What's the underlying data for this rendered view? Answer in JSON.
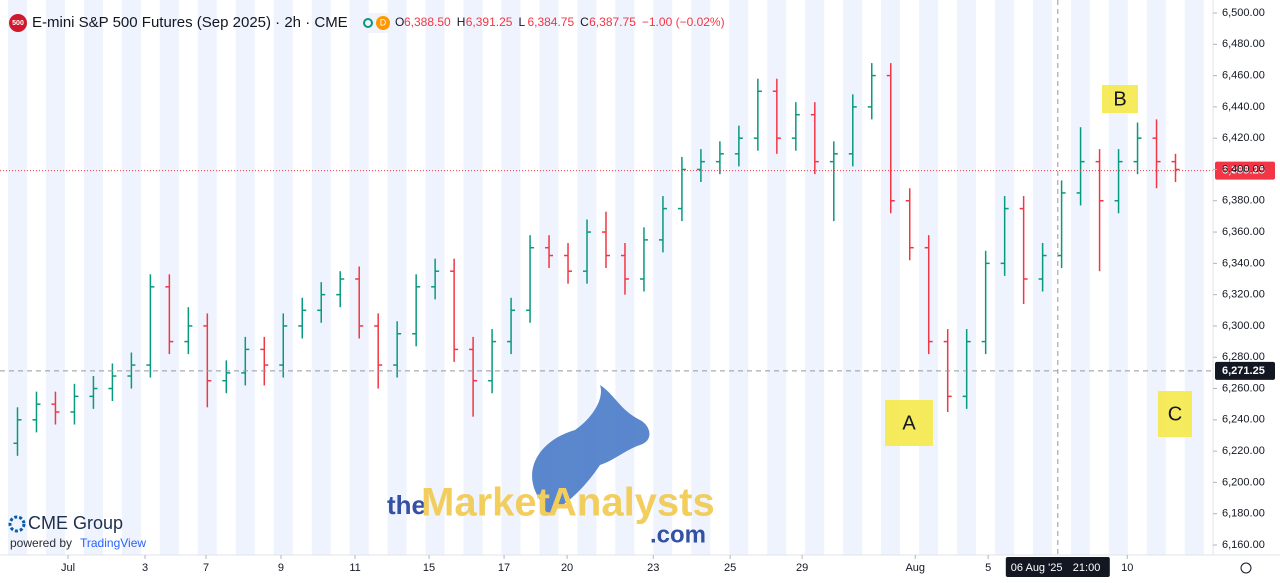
{
  "chart_data": {
    "type": "ohlc",
    "title": "E-mini S&P 500 Futures (Sep 2025) · 2h · CME",
    "symbol_badge": "500",
    "interval_badge": "D",
    "legend_items": [
      {
        "key": "O",
        "value": "6,388.50"
      },
      {
        "key": "H",
        "value": "6,391.25"
      },
      {
        "key": "L",
        "value": "6,384.75"
      },
      {
        "key": "C",
        "value": "6,387.75"
      }
    ],
    "change": "−1.00 (−0.02%)",
    "up_color": "#089981",
    "down_color": "#f23645",
    "x": [
      0.5,
      1.5,
      2.5,
      3.5,
      4.5,
      5.5,
      6.5,
      7.5,
      8.5,
      9.5,
      10.5,
      11.5,
      12.5,
      13.5,
      14.5,
      15.5,
      16.5,
      17.5,
      18.5,
      19.5,
      20.5,
      21.5,
      22.5,
      23.5,
      24.5,
      25.5,
      26.5,
      27.5,
      28.5,
      29.5,
      30.5,
      31.5,
      32.5,
      33.5,
      34.5,
      35.5,
      36.5,
      37.5,
      38.5,
      39.5,
      40.5,
      41.5,
      42.5,
      43.5,
      44.5,
      45.5,
      46.5,
      47.5,
      48.5,
      49.5,
      50.5,
      51.5,
      52.5,
      53.5,
      54.5,
      55.5,
      56.5,
      57.5,
      58.5,
      59.5,
      60.5,
      61.5
    ],
    "open": [
      6225,
      6240,
      6250,
      6245,
      6255,
      6260,
      6268,
      6275,
      6325,
      6290,
      6300,
      6265,
      6270,
      6285,
      6275,
      6300,
      6310,
      6320,
      6330,
      6300,
      6275,
      6295,
      6325,
      6335,
      6285,
      6265,
      6290,
      6310,
      6350,
      6345,
      6335,
      6360,
      6345,
      6330,
      6355,
      6375,
      6400,
      6405,
      6410,
      6420,
      6450,
      6420,
      6435,
      6405,
      6410,
      6440,
      6460,
      6380,
      6350,
      6290,
      6255,
      6290,
      6340,
      6375,
      6330,
      6345,
      6385,
      6405,
      6380,
      6405,
      6420,
      6405
    ],
    "high": [
      6248,
      6258,
      6258,
      6263,
      6268,
      6276,
      6283,
      6333,
      6333,
      6312,
      6308,
      6278,
      6293,
      6293,
      6308,
      6318,
      6328,
      6335,
      6338,
      6308,
      6303,
      6333,
      6343,
      6343,
      6293,
      6298,
      6318,
      6358,
      6358,
      6353,
      6368,
      6373,
      6353,
      6363,
      6383,
      6408,
      6413,
      6418,
      6428,
      6458,
      6458,
      6443,
      6443,
      6418,
      6448,
      6468,
      6468,
      6388,
      6358,
      6298,
      6298,
      6348,
      6383,
      6383,
      6353,
      6393,
      6427,
      6413,
      6413,
      6430,
      6432,
      6410
    ],
    "low": [
      6217,
      6232,
      6237,
      6237,
      6247,
      6252,
      6260,
      6267,
      6282,
      6282,
      6248,
      6257,
      6262,
      6262,
      6267,
      6292,
      6302,
      6312,
      6292,
      6260,
      6267,
      6287,
      6317,
      6277,
      6242,
      6257,
      6282,
      6302,
      6337,
      6327,
      6327,
      6337,
      6320,
      6322,
      6347,
      6367,
      6392,
      6397,
      6402,
      6412,
      6410,
      6412,
      6397,
      6367,
      6402,
      6432,
      6372,
      6342,
      6282,
      6245,
      6247,
      6282,
      6332,
      6314,
      6322,
      6337,
      6377,
      6335,
      6372,
      6397,
      6388,
      6392
    ],
    "close": [
      6240,
      6250,
      6245,
      6255,
      6260,
      6268,
      6275,
      6325,
      6290,
      6300,
      6265,
      6270,
      6285,
      6275,
      6300,
      6310,
      6320,
      6330,
      6300,
      6275,
      6295,
      6325,
      6335,
      6285,
      6265,
      6290,
      6310,
      6350,
      6345,
      6335,
      6360,
      6345,
      6330,
      6355,
      6375,
      6400,
      6405,
      6410,
      6420,
      6450,
      6420,
      6435,
      6405,
      6410,
      6440,
      6460,
      6380,
      6350,
      6290,
      6255,
      6290,
      6340,
      6375,
      6330,
      6345,
      6385,
      6405,
      6380,
      6405,
      6420,
      6405,
      6400
    ],
    "xlim": [
      0,
      62
    ],
    "xticks": [
      {
        "value": 3.16,
        "label": "Jul"
      },
      {
        "value": 7.22,
        "label": "3"
      },
      {
        "value": 10.43,
        "label": "7"
      },
      {
        "value": 14.38,
        "label": "9"
      },
      {
        "value": 18.28,
        "label": "11"
      },
      {
        "value": 22.18,
        "label": "15"
      },
      {
        "value": 26.13,
        "label": "17"
      },
      {
        "value": 29.45,
        "label": "20"
      },
      {
        "value": 33.99,
        "label": "23"
      },
      {
        "value": 38.04,
        "label": "25"
      },
      {
        "value": 41.83,
        "label": "29"
      },
      {
        "value": 47.79,
        "label": "Aug"
      },
      {
        "value": 51.63,
        "label": "5"
      },
      {
        "value": 58.96,
        "label": "10"
      }
    ],
    "ylim": [
      6160,
      6500
    ],
    "yticks": [
      {
        "value": 6160,
        "label": "6,160.00"
      },
      {
        "value": 6180,
        "label": "6,180.00"
      },
      {
        "value": 6200,
        "label": "6,200.00"
      },
      {
        "value": 6220,
        "label": "6,220.00"
      },
      {
        "value": 6240,
        "label": "6,240.00"
      },
      {
        "value": 6260,
        "label": "6,260.00"
      },
      {
        "value": 6280,
        "label": "6,280.00"
      },
      {
        "value": 6300,
        "label": "6,300.00"
      },
      {
        "value": 6320,
        "label": "6,320.00"
      },
      {
        "value": 6340,
        "label": "6,340.00"
      },
      {
        "value": 6360,
        "label": "6,360.00"
      },
      {
        "value": 6380,
        "label": "6,380.00"
      },
      {
        "value": 6400,
        "label": "6,400.00"
      },
      {
        "value": 6420,
        "label": "6,420.00"
      },
      {
        "value": 6440,
        "label": "6,440.00"
      },
      {
        "value": 6460,
        "label": "6,460.00"
      },
      {
        "value": 6480,
        "label": "6,480.00"
      },
      {
        "value": 6500,
        "label": "6,500.00"
      }
    ],
    "last_price": {
      "value": 6399.25,
      "label": "6,399.25"
    },
    "crosshair": {
      "x": 55.3,
      "x_label": "06 Aug '25",
      "time_label": "21:00",
      "price": 6271.25,
      "price_label": "6,271.25"
    },
    "annotations": [
      "A",
      "B",
      "C"
    ],
    "watermark": {
      "prefix": "the",
      "word1": "Market",
      "word2": "Analysts",
      "suffix": ".com"
    },
    "branding": {
      "name": "CME Group",
      "powered": "powered by",
      "platform": "TradingView"
    }
  }
}
